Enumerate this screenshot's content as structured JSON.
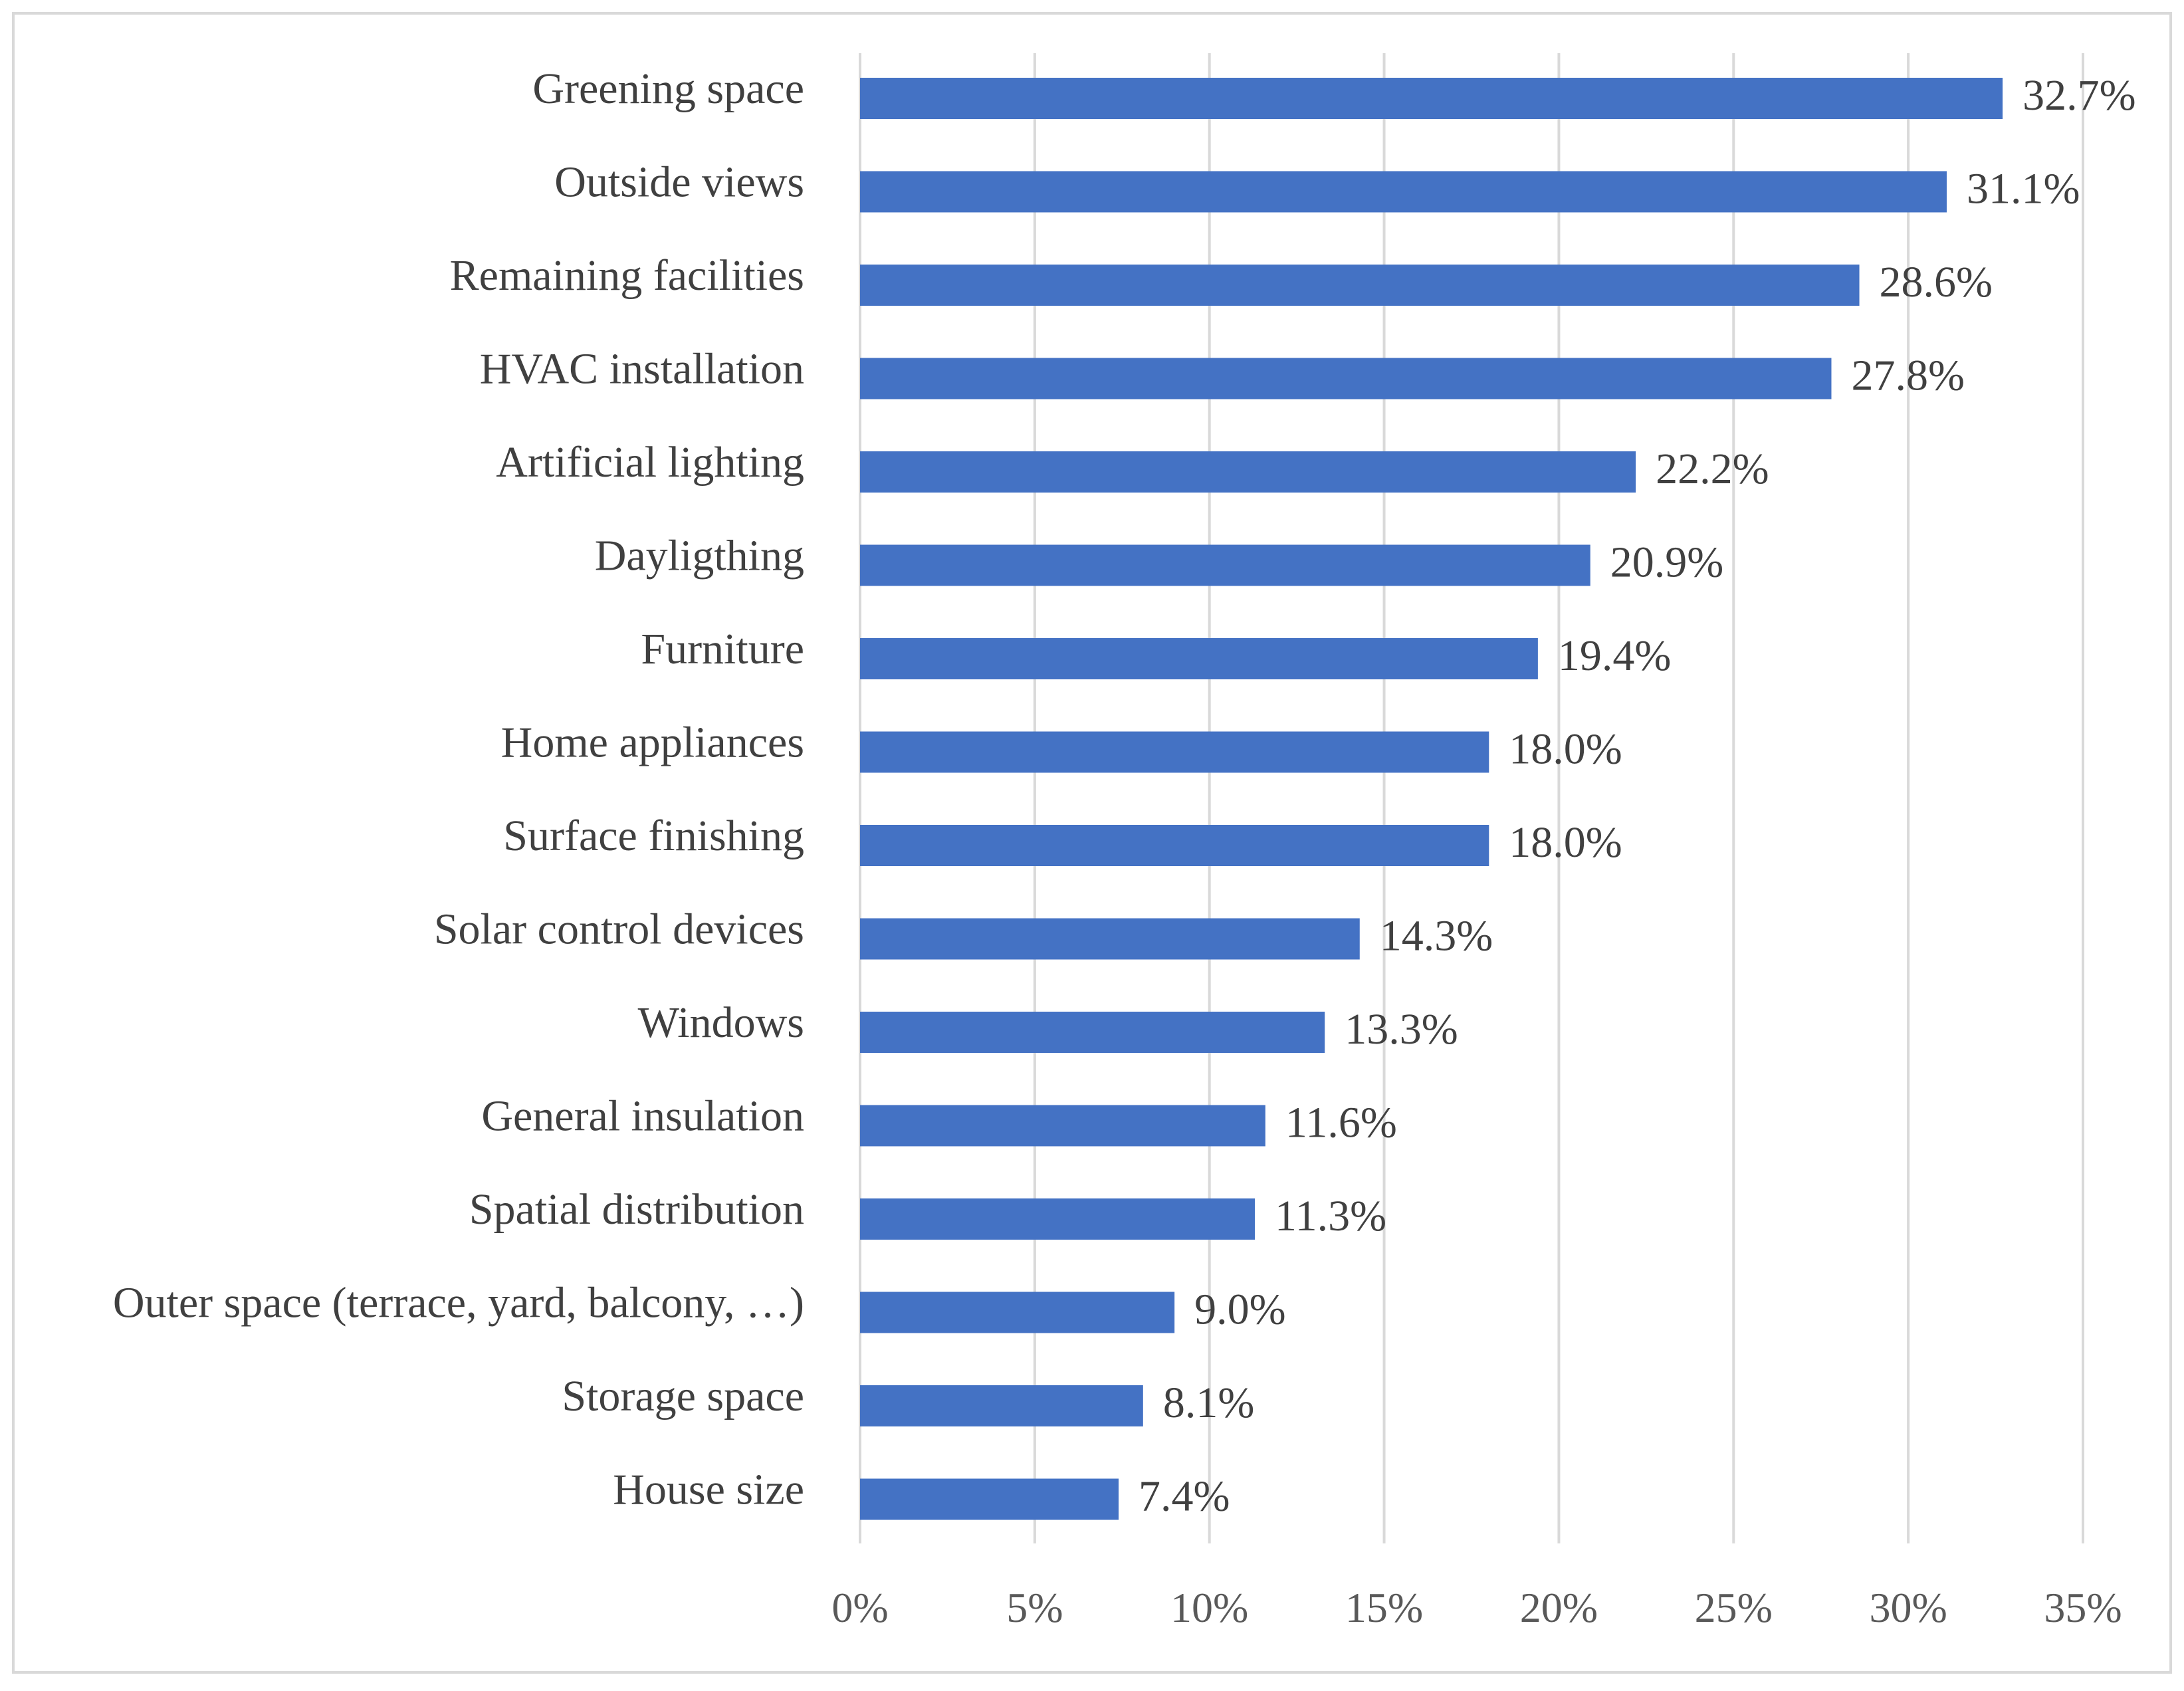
{
  "chart_data": {
    "type": "bar",
    "orientation": "horizontal",
    "categories": [
      "Greening space",
      "Outside views",
      "Remaining facilities",
      "HVAC installation",
      "Artificial lighting",
      "Dayligthing",
      "Furniture",
      "Home appliances",
      "Surface finishing",
      "Solar control devices",
      "Windows",
      "General insulation",
      "Spatial distribution",
      "Outer space (terrace, yard, balcony, …)",
      "Storage space",
      "House size"
    ],
    "values": [
      32.7,
      31.1,
      28.6,
      27.8,
      22.2,
      20.9,
      19.4,
      18.0,
      18.0,
      14.3,
      13.3,
      11.6,
      11.3,
      9.0,
      8.1,
      7.4
    ],
    "value_labels": [
      "32.7%",
      "31.1%",
      "28.6%",
      "27.8%",
      "22.2%",
      "20.9%",
      "19.4%",
      "18.0%",
      "18.0%",
      "14.3%",
      "13.3%",
      "11.6%",
      "11.3%",
      "9.0%",
      "8.1%",
      "7.4%"
    ],
    "x_ticks": [
      0,
      5,
      10,
      15,
      20,
      25,
      30,
      35
    ],
    "x_tick_labels": [
      "0%",
      "5%",
      "10%",
      "15%",
      "20%",
      "25%",
      "30%",
      "35%"
    ],
    "xlim": [
      0,
      35
    ],
    "title": "",
    "xlabel": "",
    "ylabel": "",
    "grid": true,
    "legend": "none",
    "bar_color": "#4472c4"
  }
}
